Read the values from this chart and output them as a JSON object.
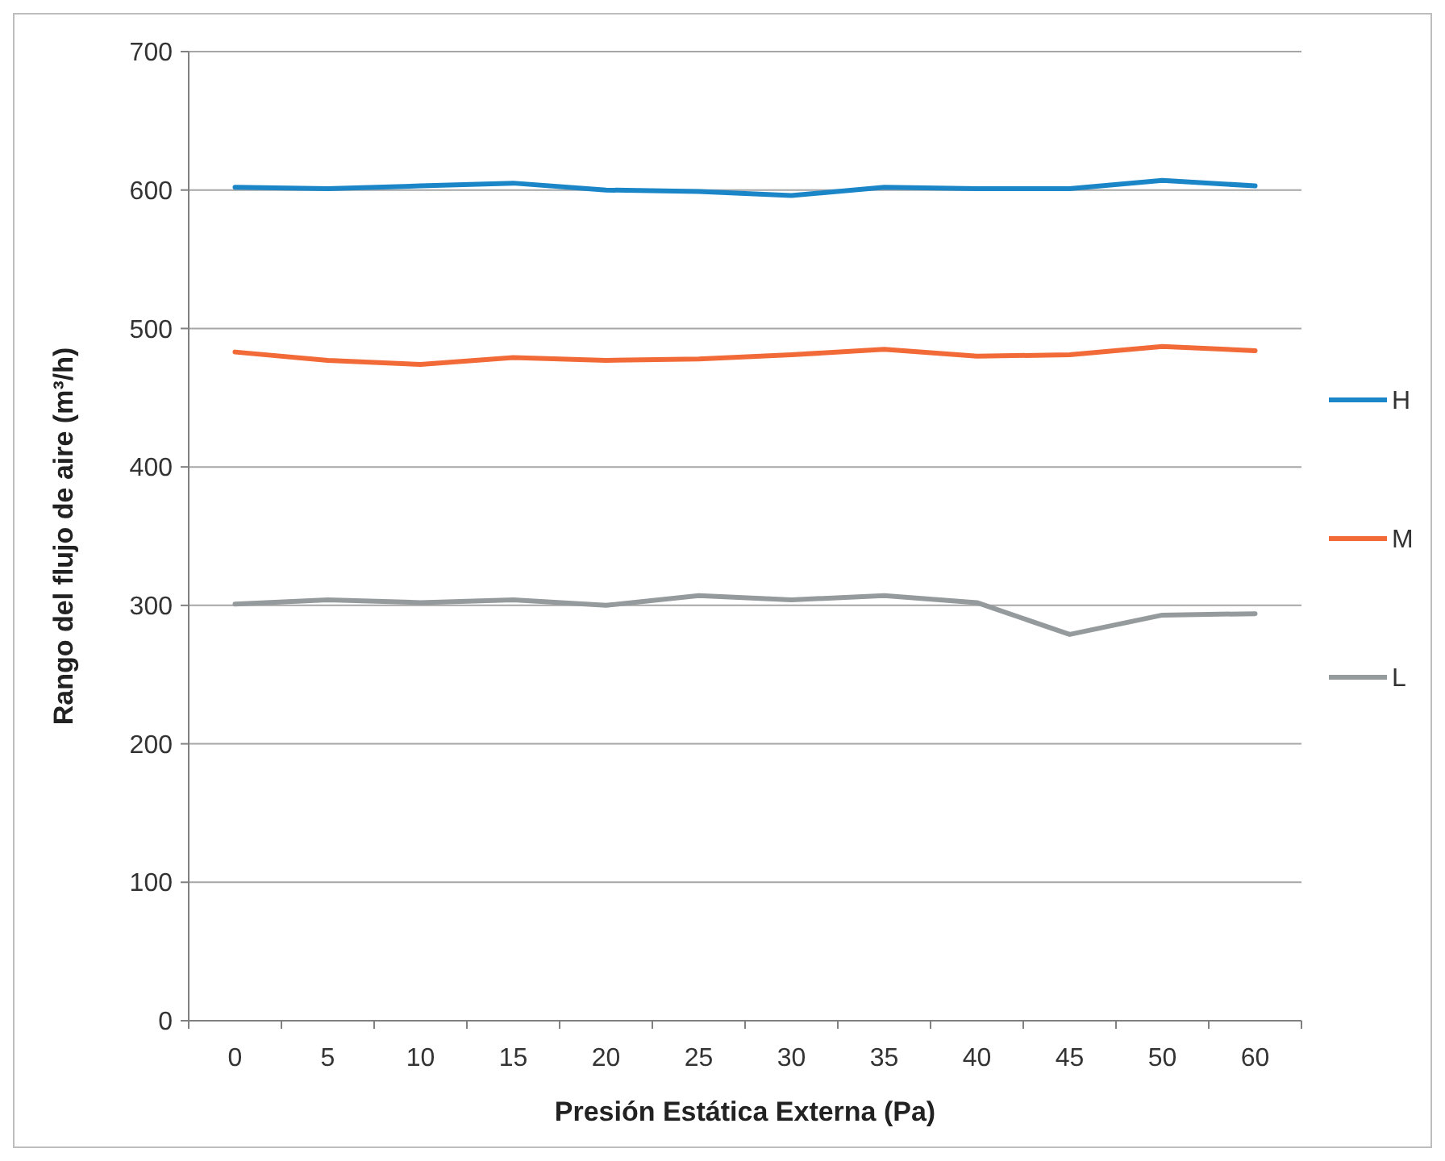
{
  "chart_data": {
    "type": "line",
    "xlabel": "Presión Estática Externa (Pa)",
    "ylabel": "Rango del flujo de aire (m³/h)",
    "categories": [
      "0",
      "5",
      "10",
      "15",
      "20",
      "25",
      "30",
      "35",
      "40",
      "45",
      "50",
      "60"
    ],
    "series": [
      {
        "name": "H",
        "color": "#1a86c8",
        "values": [
          602,
          601,
          603,
          605,
          600,
          599,
          596,
          602,
          601,
          601,
          607,
          603
        ]
      },
      {
        "name": "M",
        "color": "#f26a38",
        "values": [
          483,
          477,
          474,
          479,
          477,
          478,
          481,
          485,
          480,
          481,
          487,
          484
        ]
      },
      {
        "name": "L",
        "color": "#959a9d",
        "values": [
          301,
          304,
          302,
          304,
          300,
          307,
          304,
          307,
          302,
          279,
          293,
          294
        ]
      }
    ],
    "ylim": [
      0,
      700
    ],
    "yticks": [
      0,
      100,
      200,
      300,
      400,
      500,
      600,
      700
    ],
    "grid": "y",
    "legend": "right",
    "marker": "none",
    "line_style": "solid"
  }
}
